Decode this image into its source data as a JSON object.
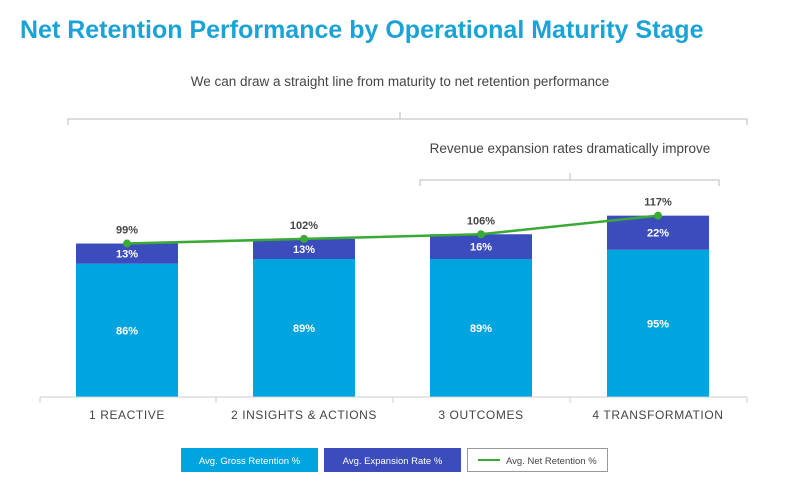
{
  "colors": {
    "title": "#1aa3d6",
    "gross": "#00a5df",
    "expansion": "#3b4cbc",
    "net_line": "#3aa935",
    "net_marker": "#3aa935",
    "text": "#444444"
  },
  "chart_data": {
    "type": "bar",
    "stacked": true,
    "title": "Net Retention Performance by Operational Maturity Stage",
    "xlabel": "",
    "ylabel": "",
    "categories": [
      "1  REACTIVE",
      "2  INSIGHTS & ACTIONS",
      "3  OUTCOMES",
      "4  TRANSFORMATION"
    ],
    "series": [
      {
        "name": "Avg. Gross Retention %",
        "kind": "bar",
        "values": [
          86,
          89,
          89,
          95
        ],
        "labels": [
          "86%",
          "89%",
          "89%",
          "95%"
        ]
      },
      {
        "name": "Avg. Expansion Rate %",
        "kind": "bar",
        "values": [
          13,
          13,
          16,
          22
        ],
        "labels": [
          "13%",
          "13%",
          "16%",
          "22%"
        ]
      },
      {
        "name": "Avg. Net Retention %",
        "kind": "line",
        "values": [
          99,
          102,
          106,
          117
        ],
        "labels": [
          "99%",
          "102%",
          "106%",
          "117%"
        ]
      }
    ],
    "annotations": [
      {
        "id": "overall",
        "text": "We can draw a straight line from maturity to net retention performance",
        "spans": [
          0,
          3
        ]
      },
      {
        "id": "expansion",
        "text": "Revenue expansion rates dramatically improve",
        "spans": [
          2,
          3
        ]
      }
    ],
    "legend": {
      "position": "bottom",
      "items": [
        "Avg. Gross Retention %",
        "Avg. Expansion Rate %",
        "Avg. Net Retention %"
      ]
    }
  }
}
